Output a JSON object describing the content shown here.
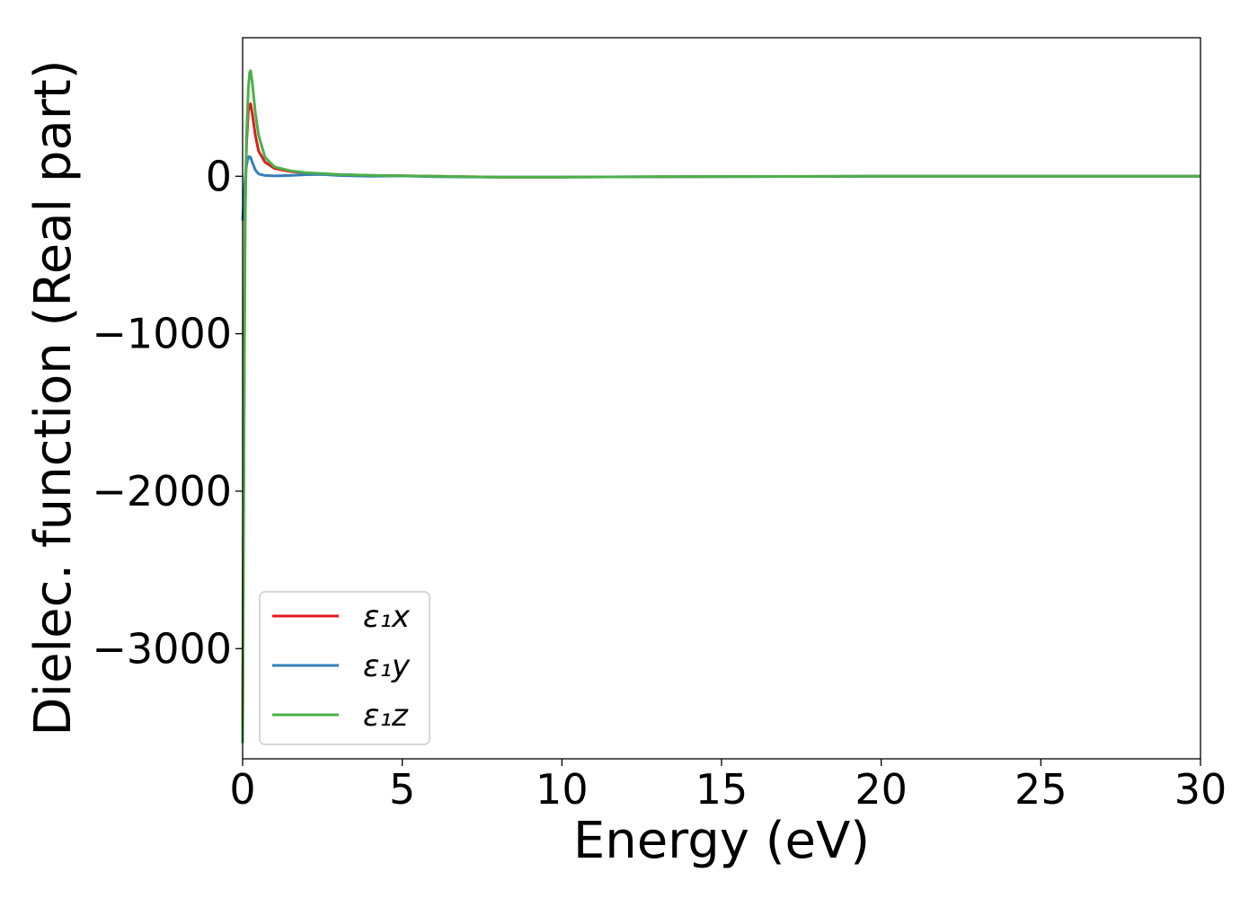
{
  "chart_data": {
    "type": "line",
    "title": "",
    "xlabel": "Energy (eV)",
    "ylabel": "Dielec. function (Real part)",
    "xlim": [
      0,
      30
    ],
    "ylim": [
      -3700,
      880
    ],
    "xticks": [
      0,
      5,
      10,
      15,
      20,
      25,
      30
    ],
    "xtick_labels": [
      "0",
      "5",
      "10",
      "15",
      "20",
      "25",
      "30"
    ],
    "yticks": [
      0,
      -1000,
      -2000,
      -3000
    ],
    "ytick_labels": [
      "0",
      "−1000",
      "−2000",
      "−3000"
    ],
    "grid": false,
    "legend_position": "lower-left",
    "series": [
      {
        "name": "ε₁x",
        "color": "#e41a1c",
        "x": [
          0.0,
          0.02,
          0.05,
          0.08,
          0.12,
          0.18,
          0.25,
          0.3,
          0.4,
          0.5,
          0.7,
          1.0,
          1.5,
          2.0,
          3.0,
          4.0,
          5.0,
          6.0,
          8.0,
          10.0,
          15.0,
          20.0,
          25.0,
          30.0
        ],
        "values": [
          -3500,
          -2500,
          -1200,
          -200,
          200,
          420,
          460,
          400,
          260,
          160,
          90,
          50,
          30,
          20,
          10,
          5,
          3,
          0,
          -5,
          -5,
          -2,
          0,
          0,
          0
        ]
      },
      {
        "name": "ε₁y",
        "color": "#377eb8",
        "x": [
          0.0,
          0.05,
          0.1,
          0.15,
          0.2,
          0.25,
          0.3,
          0.4,
          0.5,
          0.7,
          1.0,
          1.5,
          2.0,
          2.5,
          3.0,
          4.0,
          5.0,
          6.0,
          8.0,
          10.0,
          15.0,
          20.0,
          25.0,
          30.0
        ],
        "values": [
          -280,
          -100,
          40,
          100,
          125,
          120,
          90,
          40,
          15,
          5,
          2,
          5,
          10,
          12,
          5,
          0,
          2,
          -3,
          -5,
          -5,
          -2,
          0,
          0,
          0
        ]
      },
      {
        "name": "ε₁z",
        "color": "#4daf4a",
        "x": [
          0.0,
          0.02,
          0.05,
          0.08,
          0.12,
          0.18,
          0.22,
          0.25,
          0.3,
          0.4,
          0.5,
          0.7,
          1.0,
          1.5,
          2.0,
          3.0,
          4.0,
          5.0,
          6.0,
          8.0,
          10.0,
          15.0,
          20.0,
          25.0,
          30.0
        ],
        "values": [
          -3600,
          -2800,
          -1400,
          -300,
          250,
          560,
          660,
          670,
          600,
          400,
          260,
          120,
          60,
          35,
          22,
          12,
          6,
          3,
          0,
          -5,
          -5,
          -2,
          0,
          0,
          0
        ]
      }
    ]
  }
}
